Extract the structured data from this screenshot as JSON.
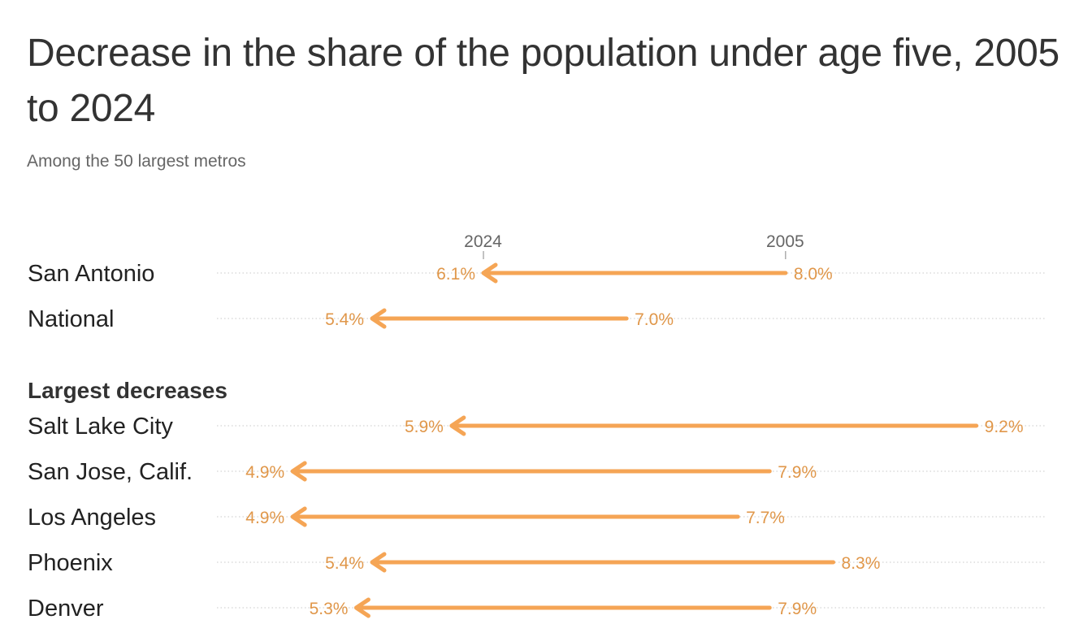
{
  "title": "Decrease in the share of the population under age five, 2005 to 2024",
  "subtitle": "Among the 50 largest metros",
  "chart_data": {
    "type": "arrow-dot",
    "title": "Decrease in the share of the population under age five, 2005 to 2024",
    "subtitle": "Among the 50 largest metros",
    "x_unit": "%",
    "xlim": [
      4.0,
      9.7
    ],
    "axis_markers": [
      {
        "label": "2024",
        "value": 6.1
      },
      {
        "label": "2005",
        "value": 8.0
      }
    ],
    "group_label": "Largest decreases",
    "series_names": [
      "2005",
      "2024"
    ],
    "color": "#f5a555",
    "rows": [
      {
        "label": "San Antonio",
        "from": 8.0,
        "to": 6.1,
        "from_label": "8.0%",
        "to_label": "6.1%"
      },
      {
        "label": "National",
        "from": 7.0,
        "to": 5.4,
        "from_label": "7.0%",
        "to_label": "5.4%"
      },
      {
        "label": "Salt Lake City",
        "from": 9.2,
        "to": 5.9,
        "from_label": "9.2%",
        "to_label": "5.9%"
      },
      {
        "label": "San Jose, Calif.",
        "from": 7.9,
        "to": 4.9,
        "from_label": "7.9%",
        "to_label": "4.9%"
      },
      {
        "label": "Los Angeles",
        "from": 7.7,
        "to": 4.9,
        "from_label": "7.7%",
        "to_label": "4.9%"
      },
      {
        "label": "Phoenix",
        "from": 8.3,
        "to": 5.4,
        "from_label": "8.3%",
        "to_label": "5.4%"
      },
      {
        "label": "Denver",
        "from": 7.9,
        "to": 5.3,
        "from_label": "7.9%",
        "to_label": "5.3%"
      }
    ]
  }
}
